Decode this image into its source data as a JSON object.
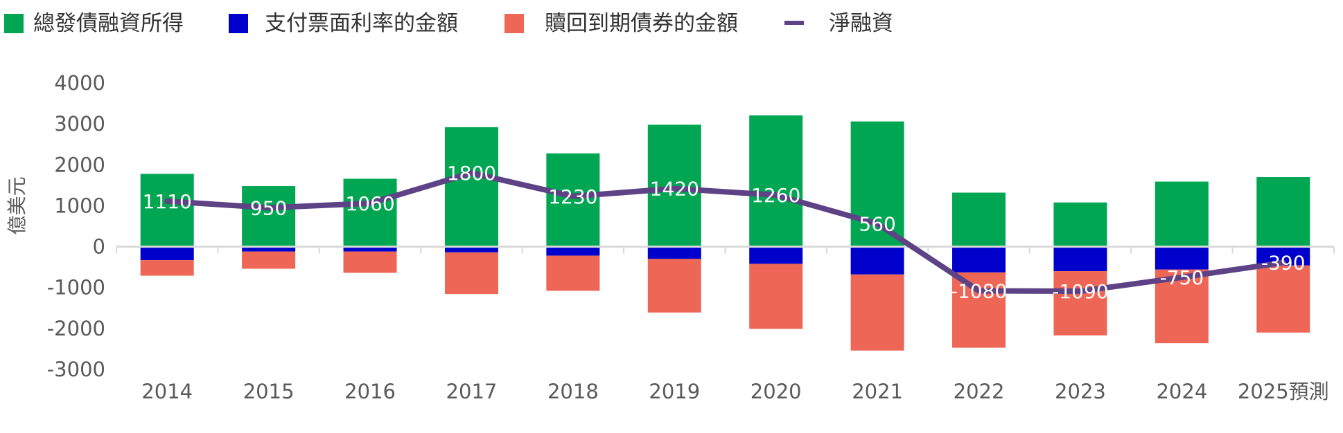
{
  "chart_data": {
    "type": "bar",
    "stacked": true,
    "categories": [
      "2014",
      "2015",
      "2016",
      "2017",
      "2018",
      "2019",
      "2020",
      "2021",
      "2022",
      "2023",
      "2024",
      "2025預測"
    ],
    "series": [
      {
        "name": "總發債融資所得",
        "kind": "bar",
        "color": "#00A651",
        "values": [
          1780,
          1480,
          1660,
          2920,
          2280,
          2980,
          3210,
          3060,
          1320,
          1080,
          1590,
          1700
        ]
      },
      {
        "name": "支付票面利率的金額",
        "kind": "bar",
        "color": "#0000CC",
        "values": [
          -330,
          -120,
          -120,
          -140,
          -220,
          -300,
          -420,
          -680,
          -630,
          -600,
          -560,
          -460
        ]
      },
      {
        "name": "贖回到期債券的金額",
        "kind": "bar",
        "color": "#EE6655",
        "values": [
          -380,
          -420,
          -520,
          -1020,
          -860,
          -1310,
          -1590,
          -1860,
          -1840,
          -1570,
          -1800,
          -1640
        ]
      },
      {
        "name": "淨融資",
        "kind": "line",
        "color": "#5E4286",
        "values": [
          1110,
          950,
          1060,
          1800,
          1230,
          1420,
          1260,
          560,
          -1080,
          -1090,
          -750,
          -390
        ],
        "labels": [
          "1110",
          "950",
          "1060",
          "1800",
          "1230",
          "1420",
          "1260",
          "560",
          "-1080",
          "-1090",
          "-750",
          "-390"
        ]
      }
    ],
    "ylabel": "億美元",
    "ylim": [
      -3000,
      4000
    ],
    "yticks": [
      4000,
      3000,
      2000,
      1000,
      0,
      -1000,
      -2000,
      -3000
    ],
    "ytick_labels": [
      "4000",
      "3000",
      "2000",
      "1000",
      "0",
      "-1000",
      "-2000",
      "-3000"
    ],
    "grid": false,
    "legend_position": "top-left"
  }
}
